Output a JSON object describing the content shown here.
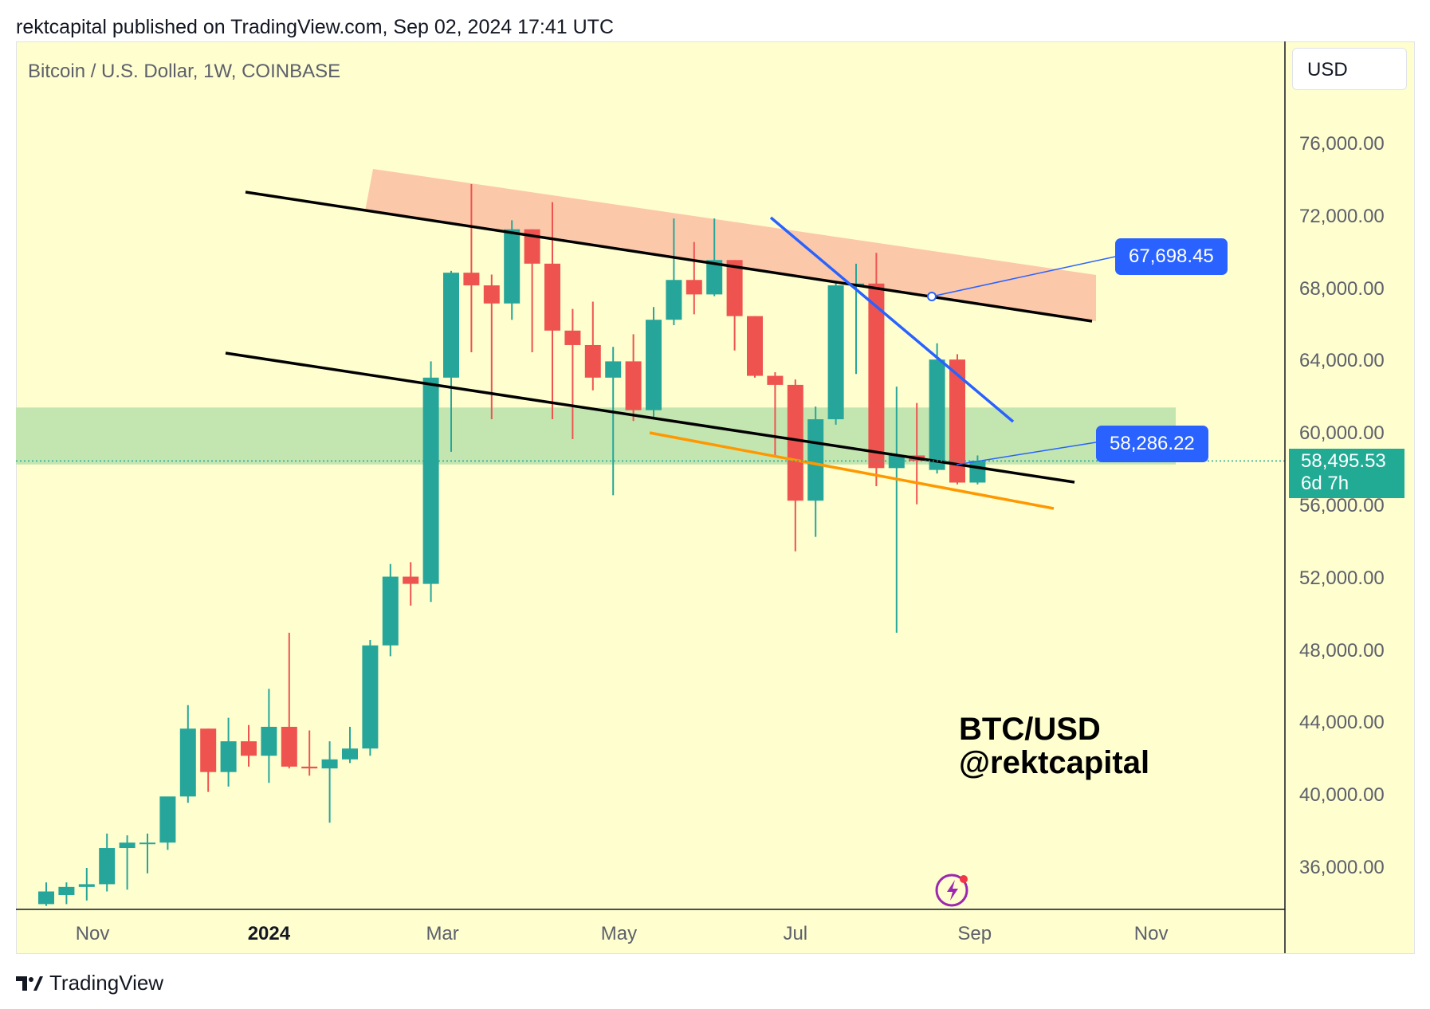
{
  "header": {
    "text": "rektcapital published on TradingView.com, Sep 02, 2024 17:41 UTC"
  },
  "symbol": {
    "title": "Bitcoin / U.S. Dollar, 1W, COINBASE"
  },
  "currency_button": "USD",
  "watermark": {
    "line1": "BTC/USD",
    "line2": "@rektcapital"
  },
  "footer": {
    "brand": "TradingView"
  },
  "callouts": {
    "upper": "67,698.45",
    "lower": "58,286.22"
  },
  "last_price": {
    "value": "58,495.53",
    "countdown": "6d 7h"
  },
  "colors": {
    "background": "#fefecf",
    "up": "#26a69a",
    "down": "#ef5350",
    "resistance_zone": "#fcc8aa",
    "support_zone": "#c3e6b1",
    "trend_blue": "#2962ff",
    "trend_orange": "#ff9800",
    "trend_black": "#000000"
  },
  "chart_data": {
    "type": "candlestick",
    "title": "Bitcoin / U.S. Dollar, 1W, COINBASE",
    "ylim": [
      33500,
      79500
    ],
    "y_ticks": [
      "36,000.00",
      "40,000.00",
      "44,000.00",
      "48,000.00",
      "52,000.00",
      "56,000.00",
      "60,000.00",
      "64,000.00",
      "68,000.00",
      "72,000.00",
      "76,000.00"
    ],
    "y_tick_values": [
      36000,
      40000,
      44000,
      48000,
      52000,
      56000,
      60000,
      64000,
      68000,
      72000,
      76000
    ],
    "x_ticks": [
      {
        "label": "Nov",
        "date": "2023-11-01",
        "bold": false
      },
      {
        "label": "2024",
        "date": "2024-01-01",
        "bold": true
      },
      {
        "label": "Mar",
        "date": "2024-03-01",
        "bold": false
      },
      {
        "label": "May",
        "date": "2024-05-01",
        "bold": false
      },
      {
        "label": "Jul",
        "date": "2024-07-01",
        "bold": false
      },
      {
        "label": "Sep",
        "date": "2024-09-01",
        "bold": false
      },
      {
        "label": "Nov",
        "date": "2024-11-01",
        "bold": false
      }
    ],
    "candles": [
      {
        "date": "2023-10-16",
        "o": 34000,
        "h": 35200,
        "l": 33900,
        "c": 34700
      },
      {
        "date": "2023-10-23",
        "o": 34500,
        "h": 35200,
        "l": 34000,
        "c": 34950
      },
      {
        "date": "2023-10-30",
        "o": 34950,
        "h": 36000,
        "l": 34200,
        "c": 35100
      },
      {
        "date": "2023-11-06",
        "o": 35100,
        "h": 37900,
        "l": 34700,
        "c": 37100
      },
      {
        "date": "2023-11-13",
        "o": 37100,
        "h": 37800,
        "l": 34800,
        "c": 37400
      },
      {
        "date": "2023-11-20",
        "o": 37400,
        "h": 37900,
        "l": 35700,
        "c": 37400
      },
      {
        "date": "2023-11-27",
        "o": 37400,
        "h": 39500,
        "l": 37000,
        "c": 39950
      },
      {
        "date": "2023-12-04",
        "o": 39950,
        "h": 45000,
        "l": 39600,
        "c": 43700
      },
      {
        "date": "2023-12-11",
        "o": 43700,
        "h": 43700,
        "l": 40200,
        "c": 41300
      },
      {
        "date": "2023-12-18",
        "o": 41300,
        "h": 44300,
        "l": 40500,
        "c": 43000
      },
      {
        "date": "2023-12-25",
        "o": 43000,
        "h": 43900,
        "l": 41600,
        "c": 42200
      },
      {
        "date": "2024-01-01",
        "o": 42200,
        "h": 45900,
        "l": 40700,
        "c": 43800
      },
      {
        "date": "2024-01-08",
        "o": 43800,
        "h": 49000,
        "l": 41500,
        "c": 41600
      },
      {
        "date": "2024-01-15",
        "o": 41600,
        "h": 43600,
        "l": 41100,
        "c": 41500
      },
      {
        "date": "2024-01-22",
        "o": 41500,
        "h": 43000,
        "l": 38500,
        "c": 42000
      },
      {
        "date": "2024-01-29",
        "o": 42000,
        "h": 43800,
        "l": 41800,
        "c": 42600
      },
      {
        "date": "2024-02-05",
        "o": 42600,
        "h": 48600,
        "l": 42200,
        "c": 48300
      },
      {
        "date": "2024-02-12",
        "o": 48300,
        "h": 52800,
        "l": 47700,
        "c": 52100
      },
      {
        "date": "2024-02-19",
        "o": 52100,
        "h": 52900,
        "l": 50500,
        "c": 51700
      },
      {
        "date": "2024-02-26",
        "o": 51700,
        "h": 64000,
        "l": 50700,
        "c": 63100
      },
      {
        "date": "2024-03-04",
        "o": 63100,
        "h": 69000,
        "l": 59000,
        "c": 68900
      },
      {
        "date": "2024-03-11",
        "o": 68900,
        "h": 73800,
        "l": 64500,
        "c": 68200
      },
      {
        "date": "2024-03-18",
        "o": 68200,
        "h": 68800,
        "l": 60800,
        "c": 67200
      },
      {
        "date": "2024-03-25",
        "o": 67200,
        "h": 71800,
        "l": 66300,
        "c": 71300
      },
      {
        "date": "2024-04-01",
        "o": 71300,
        "h": 71300,
        "l": 64500,
        "c": 69400
      },
      {
        "date": "2024-04-08",
        "o": 69400,
        "h": 72800,
        "l": 60800,
        "c": 65700
      },
      {
        "date": "2024-04-15",
        "o": 65700,
        "h": 66900,
        "l": 59700,
        "c": 64900
      },
      {
        "date": "2024-04-22",
        "o": 64900,
        "h": 67300,
        "l": 62400,
        "c": 63100
      },
      {
        "date": "2024-04-29",
        "o": 63100,
        "h": 64800,
        "l": 56600,
        "c": 64000
      },
      {
        "date": "2024-05-06",
        "o": 64000,
        "h": 65500,
        "l": 60700,
        "c": 61300
      },
      {
        "date": "2024-05-13",
        "o": 61300,
        "h": 67000,
        "l": 60900,
        "c": 66300
      },
      {
        "date": "2024-05-20",
        "o": 66300,
        "h": 71900,
        "l": 66000,
        "c": 68500
      },
      {
        "date": "2024-05-27",
        "o": 68500,
        "h": 70600,
        "l": 66600,
        "c": 67700
      },
      {
        "date": "2024-06-03",
        "o": 67700,
        "h": 71900,
        "l": 67600,
        "c": 69600
      },
      {
        "date": "2024-06-10",
        "o": 69600,
        "h": 69600,
        "l": 64600,
        "c": 66500
      },
      {
        "date": "2024-06-17",
        "o": 66500,
        "h": 66500,
        "l": 63100,
        "c": 63200
      },
      {
        "date": "2024-06-24",
        "o": 63200,
        "h": 63400,
        "l": 58700,
        "c": 62700
      },
      {
        "date": "2024-07-01",
        "o": 62700,
        "h": 63000,
        "l": 53500,
        "c": 56300
      },
      {
        "date": "2024-07-08",
        "o": 56300,
        "h": 61500,
        "l": 54300,
        "c": 60800
      },
      {
        "date": "2024-07-15",
        "o": 60800,
        "h": 68400,
        "l": 60500,
        "c": 68200
      },
      {
        "date": "2024-07-22",
        "o": 68200,
        "h": 69400,
        "l": 63300,
        "c": 68300
      },
      {
        "date": "2024-07-29",
        "o": 68300,
        "h": 70000,
        "l": 57100,
        "c": 58100
      },
      {
        "date": "2024-08-05",
        "o": 58100,
        "h": 62600,
        "l": 49000,
        "c": 58800
      },
      {
        "date": "2024-08-12",
        "o": 58800,
        "h": 61700,
        "l": 56100,
        "c": 58500
      },
      {
        "date": "2024-08-19",
        "o": 58000,
        "h": 65000,
        "l": 57800,
        "c": 64100
      },
      {
        "date": "2024-08-26",
        "o": 64100,
        "h": 64400,
        "l": 57200,
        "c": 57300
      },
      {
        "date": "2024-09-02",
        "o": 57300,
        "h": 58800,
        "l": 57200,
        "c": 58500
      }
    ]
  }
}
